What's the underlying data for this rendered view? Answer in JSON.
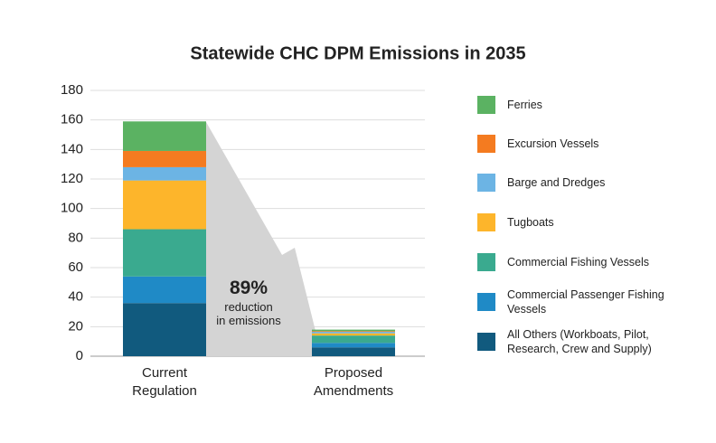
{
  "chart_data": {
    "type": "stacked_bar",
    "title": "Statewide CHC DPM Emissions in 2035",
    "categories": [
      "Current Regulation",
      "Proposed Amendments"
    ],
    "series": [
      {
        "name": "Ferries",
        "color": "#5bb262",
        "values": [
          20,
          1
        ]
      },
      {
        "name": "Excursion Vessels",
        "color": "#f47b20",
        "values": [
          11,
          0.5
        ]
      },
      {
        "name": "Barge and Dredges",
        "color": "#6cb4e4",
        "values": [
          9,
          1
        ]
      },
      {
        "name": "Tugboats",
        "color": "#fdb52b",
        "values": [
          33,
          1.5
        ]
      },
      {
        "name": "Commercial Fishing Vessels",
        "color": "#3aaa8f",
        "values": [
          32,
          5
        ]
      },
      {
        "name": "Commercial Passenger Fishing Vessels",
        "color": "#1f8ac6",
        "values": [
          18,
          3
        ]
      },
      {
        "name": "All Others (Workboats, Pilot, Research, Crew and Supply)",
        "color": "#115a7e",
        "values": [
          36,
          6
        ]
      }
    ],
    "ylim": [
      0,
      180
    ],
    "yticks": [
      0,
      20,
      40,
      60,
      80,
      100,
      120,
      140,
      160,
      180
    ],
    "grid": true,
    "annotation": {
      "value": "89%",
      "lines": [
        "reduction",
        "in emissions"
      ]
    }
  }
}
